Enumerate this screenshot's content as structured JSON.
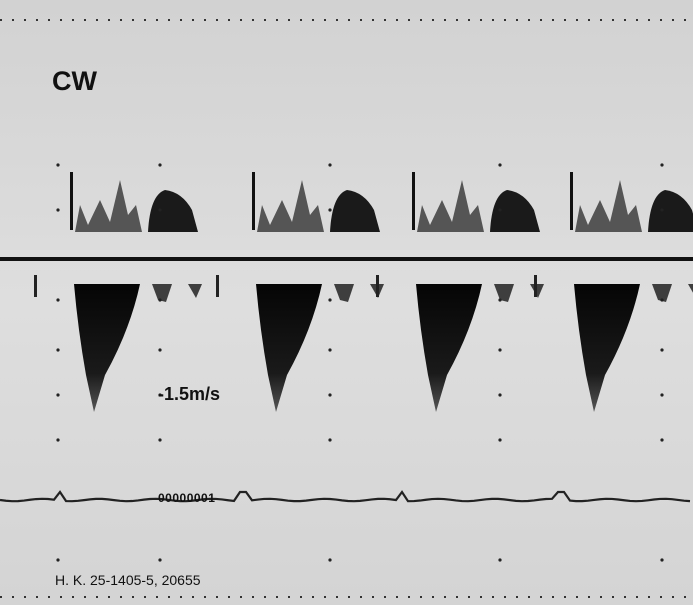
{
  "label": "CW",
  "velocity_label": "-1.5m/s",
  "counter": "00000001",
  "patient_id": "H. K. 25-1405-5, 20655"
}
